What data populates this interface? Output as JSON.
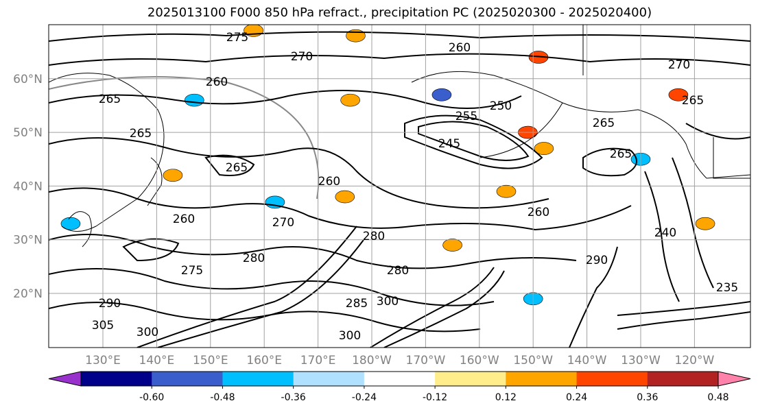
{
  "title": "2025013100 F000 850 hPa refract., precipitation PC (2025020300 - 2025020400)",
  "map": {
    "lat_labels": [
      "60°N",
      "50°N",
      "40°N",
      "30°N",
      "20°N"
    ],
    "lon_labels": [
      "130°E",
      "140°E",
      "150°E",
      "160°E",
      "170°E",
      "180°W",
      "170°W",
      "160°W",
      "150°W",
      "140°W",
      "130°W",
      "120°W"
    ],
    "contour_labels": [
      "275",
      "270",
      "260",
      "265",
      "260",
      "265",
      "255",
      "250",
      "245",
      "265",
      "265",
      "265",
      "260",
      "270",
      "260",
      "280",
      "275",
      "280",
      "290",
      "280",
      "300",
      "285",
      "300",
      "305",
      "300",
      "265",
      "240",
      "235",
      "260",
      "270",
      "290"
    ]
  },
  "colorbar": {
    "colors": [
      "#9932cc",
      "#00008b",
      "#3a5fcd",
      "#00bfff",
      "#b0e2ff",
      "#ffffff",
      "#ffec8b",
      "#ffa500",
      "#ff4500",
      "#b22222",
      "#ff82ab"
    ],
    "tick_labels": [
      "-0.60",
      "-0.48",
      "-0.36",
      "-0.24",
      "-0.12",
      "0.12",
      "0.24",
      "0.36",
      "0.48",
      "0.60"
    ],
    "extend": "both"
  },
  "patches": [
    {
      "color": "#ffa500",
      "lat": 42,
      "lon": 143
    },
    {
      "color": "#ffa500",
      "lat": 39,
      "lon": -155
    },
    {
      "color": "#ff4500",
      "lat": 50,
      "lon": -151
    },
    {
      "color": "#ffa500",
      "lat": 47,
      "lon": -148
    },
    {
      "color": "#ff4500",
      "lat": 57,
      "lon": -123
    },
    {
      "color": "#3a5fcd",
      "lat": 57,
      "lon": -167
    },
    {
      "color": "#00bfff",
      "lat": 45,
      "lon": -130
    },
    {
      "color": "#00bfff",
      "lat": 37,
      "lon": 162
    },
    {
      "color": "#ffa500",
      "lat": 56,
      "lon": 176
    },
    {
      "color": "#ff4500",
      "lat": 64,
      "lon": -149
    },
    {
      "color": "#ffa500",
      "lat": 29,
      "lon": -165
    },
    {
      "color": "#ffa500",
      "lat": 33,
      "lon": -118
    },
    {
      "color": "#00bfff",
      "lat": 56,
      "lon": 147
    },
    {
      "color": "#ffa500",
      "lat": 38,
      "lon": 175
    },
    {
      "color": "#ffa500",
      "lat": 68,
      "lon": 177
    },
    {
      "color": "#ffa500",
      "lat": 69,
      "lon": 158
    },
    {
      "color": "#00bfff",
      "lat": 19,
      "lon": -150
    },
    {
      "color": "#00bfff",
      "lat": 33,
      "lon": 124
    }
  ]
}
